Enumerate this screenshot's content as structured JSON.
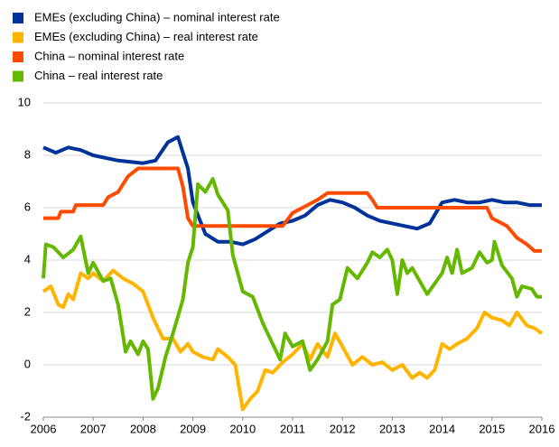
{
  "chart_data": {
    "type": "line",
    "xlim": [
      2006,
      2016
    ],
    "xticks": [
      2006,
      2007,
      2008,
      2009,
      2010,
      2011,
      2012,
      2013,
      2014,
      2015,
      2016
    ],
    "ylim": [
      -2,
      10
    ],
    "yticks": [
      -2,
      0,
      2,
      4,
      6,
      8,
      10
    ],
    "grid": true,
    "legend": "top-left",
    "series": [
      {
        "name": "EMEs (excluding China) – nominal interest rate",
        "color": "#003399",
        "x": [
          2006,
          2006.25,
          2006.5,
          2006.75,
          2007,
          2007.25,
          2007.5,
          2007.75,
          2008,
          2008.25,
          2008.5,
          2008.7,
          2008.9,
          2009,
          2009.25,
          2009.5,
          2009.75,
          2010,
          2010.25,
          2010.5,
          2010.75,
          2011,
          2011.25,
          2011.5,
          2011.75,
          2012,
          2012.25,
          2012.5,
          2012.75,
          2013,
          2013.25,
          2013.5,
          2013.75,
          2014,
          2014.25,
          2014.5,
          2014.75,
          2015,
          2015.25,
          2015.5,
          2015.75,
          2016
        ],
        "values": [
          8.3,
          8.1,
          8.3,
          8.2,
          8.0,
          7.9,
          7.8,
          7.75,
          7.7,
          7.8,
          8.5,
          8.7,
          7.5,
          6.2,
          5.0,
          4.7,
          4.7,
          4.6,
          4.8,
          5.1,
          5.4,
          5.5,
          5.7,
          6.1,
          6.3,
          6.2,
          6.0,
          5.7,
          5.5,
          5.4,
          5.3,
          5.2,
          5.4,
          6.2,
          6.3,
          6.2,
          6.2,
          6.3,
          6.2,
          6.2,
          6.1,
          6.1
        ]
      },
      {
        "name": "EMEs (excluding China) – real interest rate",
        "color": "#ffb400",
        "x": [
          2006,
          2006.15,
          2006.3,
          2006.4,
          2006.5,
          2006.6,
          2006.75,
          2006.9,
          2007,
          2007.2,
          2007.4,
          2007.6,
          2007.8,
          2008,
          2008.2,
          2008.4,
          2008.6,
          2008.75,
          2008.9,
          2009,
          2009.2,
          2009.4,
          2009.5,
          2009.7,
          2009.85,
          2010,
          2010.15,
          2010.3,
          2010.45,
          2010.6,
          2010.8,
          2011,
          2011.2,
          2011.35,
          2011.5,
          2011.7,
          2011.85,
          2012,
          2012.2,
          2012.4,
          2012.6,
          2012.8,
          2013,
          2013.2,
          2013.4,
          2013.55,
          2013.7,
          2013.85,
          2014,
          2014.15,
          2014.3,
          2014.5,
          2014.7,
          2014.85,
          2015,
          2015.2,
          2015.35,
          2015.5,
          2015.7,
          2015.85,
          2016
        ],
        "values": [
          2.8,
          3.0,
          2.3,
          2.2,
          2.7,
          2.5,
          3.5,
          3.3,
          3.5,
          3.2,
          3.6,
          3.3,
          3.1,
          2.8,
          1.8,
          1.0,
          1.0,
          0.5,
          0.8,
          0.5,
          0.3,
          0.2,
          0.6,
          0.3,
          0.0,
          -1.7,
          -1.3,
          -1.0,
          -0.2,
          -0.3,
          0.1,
          0.4,
          0.8,
          0.2,
          0.8,
          0.3,
          1.2,
          0.7,
          0.0,
          0.3,
          0.0,
          0.1,
          -0.2,
          0.0,
          -0.5,
          -0.3,
          -0.5,
          -0.2,
          0.8,
          0.6,
          0.8,
          1.0,
          1.4,
          2.0,
          1.8,
          1.7,
          1.5,
          2.0,
          1.5,
          1.4,
          1.2
        ]
      },
      {
        "name": "China – nominal interest rate",
        "color": "#ff4b00",
        "x": [
          2006,
          2006.3,
          2006.35,
          2006.6,
          2006.65,
          2007.2,
          2007.3,
          2007.5,
          2007.7,
          2007.9,
          2008.7,
          2008.8,
          2008.9,
          2009,
          2010.8,
          2011,
          2011.3,
          2011.5,
          2011.7,
          2012.5,
          2012.6,
          2012.7,
          2014.9,
          2015,
          2015.3,
          2015.5,
          2015.7,
          2015.85,
          2016
        ],
        "values": [
          5.6,
          5.6,
          5.85,
          5.85,
          6.1,
          6.1,
          6.4,
          6.6,
          7.2,
          7.5,
          7.5,
          6.8,
          5.6,
          5.3,
          5.3,
          5.8,
          6.1,
          6.3,
          6.56,
          6.56,
          6.3,
          6.0,
          6.0,
          5.6,
          5.3,
          4.85,
          4.6,
          4.35,
          4.35
        ]
      },
      {
        "name": "China – real interest rate",
        "color": "#65b800",
        "x": [
          2006,
          2006.05,
          2006.2,
          2006.4,
          2006.6,
          2006.75,
          2006.9,
          2007,
          2007.2,
          2007.35,
          2007.5,
          2007.65,
          2007.75,
          2007.9,
          2008,
          2008.1,
          2008.2,
          2008.3,
          2008.45,
          2008.6,
          2008.8,
          2008.9,
          2009,
          2009.1,
          2009.25,
          2009.4,
          2009.5,
          2009.7,
          2009.8,
          2009.9,
          2010,
          2010.2,
          2010.4,
          2010.6,
          2010.75,
          2010.85,
          2011,
          2011.2,
          2011.35,
          2011.5,
          2011.7,
          2011.8,
          2011.95,
          2012.1,
          2012.3,
          2012.5,
          2012.6,
          2012.75,
          2012.9,
          2013,
          2013.1,
          2013.2,
          2013.3,
          2013.4,
          2013.55,
          2013.7,
          2013.85,
          2014,
          2014.1,
          2014.2,
          2014.3,
          2014.4,
          2014.6,
          2014.75,
          2014.9,
          2015,
          2015.05,
          2015.2,
          2015.4,
          2015.5,
          2015.6,
          2015.8,
          2015.9,
          2016
        ],
        "values": [
          3.3,
          4.6,
          4.5,
          4.1,
          4.4,
          4.9,
          3.5,
          3.9,
          3.2,
          3.3,
          2.3,
          0.5,
          0.9,
          0.4,
          0.9,
          0.6,
          -1.3,
          -0.9,
          0.3,
          1.2,
          2.5,
          3.9,
          4.5,
          6.9,
          6.6,
          7.1,
          6.5,
          5.9,
          4.2,
          3.5,
          2.8,
          2.6,
          1.6,
          0.8,
          0.2,
          1.2,
          0.7,
          0.9,
          -0.2,
          0.2,
          0.9,
          2.3,
          2.5,
          3.7,
          3.3,
          3.9,
          4.3,
          4.1,
          4.4,
          4.0,
          2.7,
          4.0,
          3.5,
          3.7,
          3.2,
          2.7,
          3.1,
          3.5,
          4.1,
          3.5,
          4.4,
          3.5,
          3.7,
          4.3,
          3.9,
          4.0,
          4.7,
          3.8,
          3.3,
          2.6,
          3.0,
          2.9,
          2.6,
          2.6
        ]
      }
    ]
  }
}
